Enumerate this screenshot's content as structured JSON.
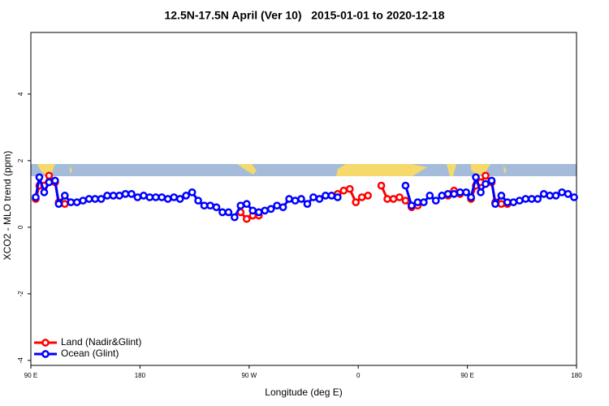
{
  "chart_data": {
    "type": "line",
    "title": "12.5N-17.5N April (Ver 10)   2015-01-01 to 2020-12-18",
    "xlabel": "Longitude (deg E)",
    "ylabel": "XCO2 - MLO trend (ppm)",
    "xlim": [
      90,
      540
    ],
    "ylim": [
      -4.15,
      5.85
    ],
    "xticks": [
      {
        "value": 90,
        "label": "90 E"
      },
      180,
      {
        "value": 270,
        "label": "90 W"
      },
      {
        "value": 360,
        "label": "0"
      },
      {
        "value": 450,
        "label": "90 E"
      },
      {
        "value": 540,
        "label": "180"
      }
    ],
    "yticks": [
      -4,
      -2,
      0,
      2,
      4
    ],
    "legend": "bottom-left",
    "series": [
      {
        "name": "Land (Nadir&Glint)",
        "color": "#ff0000",
        "x": [
          94,
          97,
          101,
          105,
          110,
          113,
          118,
          null,
          263,
          268,
          273,
          278,
          null,
          343,
          348,
          353,
          358,
          363,
          368,
          null,
          379,
          384,
          389,
          394,
          399,
          404,
          409,
          null,
          434,
          439,
          444,
          null,
          453,
          457,
          461,
          465,
          470,
          473,
          478,
          483
        ],
        "values": [
          0.85,
          1.25,
          1.25,
          1.55,
          1.35,
          0.75,
          0.7,
          null,
          0.45,
          0.25,
          0.35,
          0.35,
          null,
          1.0,
          1.1,
          1.15,
          0.75,
          0.9,
          0.95,
          null,
          1.25,
          0.85,
          0.85,
          0.9,
          0.8,
          0.6,
          0.65,
          null,
          0.95,
          1.1,
          1.0,
          null,
          0.85,
          1.25,
          1.35,
          1.55,
          1.35,
          0.75,
          0.7,
          0.7
        ]
      },
      {
        "name": "Ocean (Glint)",
        "color": "#0000ff",
        "x": [
          94,
          97,
          101,
          105,
          110,
          113,
          118,
          123,
          128,
          133,
          138,
          143,
          148,
          153,
          158,
          163,
          168,
          173,
          178,
          183,
          188,
          193,
          198,
          203,
          208,
          213,
          218,
          223,
          228,
          233,
          238,
          243,
          248,
          253,
          258,
          263,
          268,
          273,
          278,
          283,
          288,
          293,
          298,
          303,
          308,
          313,
          318,
          323,
          328,
          333,
          338,
          343,
          null,
          399,
          404,
          409,
          414,
          419,
          424,
          429,
          434,
          439,
          444,
          449,
          453,
          457,
          461,
          465,
          470,
          473,
          478,
          483,
          488,
          493,
          498,
          503,
          508,
          513,
          518,
          523,
          528,
          533,
          538
        ],
        "values": [
          0.9,
          1.5,
          1.05,
          1.35,
          1.4,
          0.7,
          0.95,
          0.75,
          0.75,
          0.8,
          0.85,
          0.85,
          0.85,
          0.95,
          0.95,
          0.95,
          1.0,
          1.0,
          0.9,
          0.95,
          0.9,
          0.9,
          0.9,
          0.85,
          0.9,
          0.85,
          0.95,
          1.05,
          0.8,
          0.65,
          0.65,
          0.6,
          0.45,
          0.45,
          0.3,
          0.65,
          0.7,
          0.5,
          0.45,
          0.5,
          0.55,
          0.65,
          0.6,
          0.85,
          0.8,
          0.85,
          0.7,
          0.9,
          0.85,
          0.95,
          0.95,
          0.9,
          null,
          1.25,
          0.65,
          0.75,
          0.75,
          0.95,
          0.8,
          0.95,
          1.0,
          1.0,
          1.05,
          1.05,
          0.9,
          1.5,
          1.05,
          1.3,
          1.4,
          0.7,
          0.95,
          0.75,
          0.75,
          0.8,
          0.85,
          0.85,
          0.85,
          1.0,
          0.95,
          0.95,
          1.05,
          1.0,
          0.9
        ]
      }
    ]
  }
}
